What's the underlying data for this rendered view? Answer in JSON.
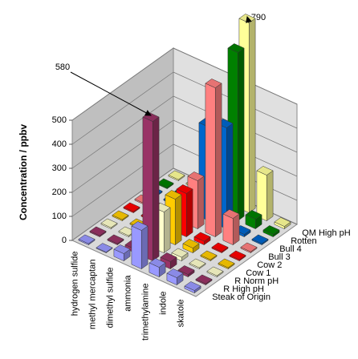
{
  "chart_data": {
    "type": "bar3d",
    "ylabel": "Concentration / ppbv",
    "categories": [
      "hydrogen sulfide",
      "methyl mercaptan",
      "dimethyl sulfide",
      "ammonia",
      "trimethylamine",
      "indole",
      "skatole"
    ],
    "series": [
      {
        "name": "Steak of Origin",
        "color": "#9999ff",
        "values": [
          5,
          3,
          30,
          160,
          40,
          30,
          10
        ]
      },
      {
        "name": "R High pH",
        "color": "#993366",
        "values": [
          5,
          5,
          15,
          580,
          30,
          10,
          5
        ]
      },
      {
        "name": "R Norm pH",
        "color": "#ffffcc",
        "values": [
          5,
          5,
          10,
          170,
          15,
          5,
          5
        ]
      },
      {
        "name": "Cow 1",
        "color": "#ffcc00",
        "values": [
          5,
          5,
          10,
          190,
          20,
          5,
          5
        ]
      },
      {
        "name": "Cow 2",
        "color": "#ff0000",
        "values": [
          5,
          5,
          10,
          180,
          15,
          5,
          5
        ]
      },
      {
        "name": "Bull 3",
        "color": "#ff8080",
        "values": [
          5,
          5,
          10,
          200,
          620,
          110,
          5
        ]
      },
      {
        "name": "Bull 4",
        "color": "#0066cc",
        "values": [
          5,
          5,
          10,
          390,
          420,
          10,
          5
        ]
      },
      {
        "name": "Rotten",
        "color": "#008000",
        "values": [
          5,
          5,
          10,
          10,
          700,
          40,
          10
        ]
      },
      {
        "name": "QM High pH",
        "color": "#ffff99",
        "values": [
          5,
          5,
          10,
          10,
          790,
          190,
          10
        ]
      }
    ],
    "ylim": [
      0,
      500
    ],
    "yticks": [
      0,
      100,
      200,
      300,
      400,
      500
    ],
    "grid": true,
    "annotations": [
      "580",
      "790"
    ]
  }
}
